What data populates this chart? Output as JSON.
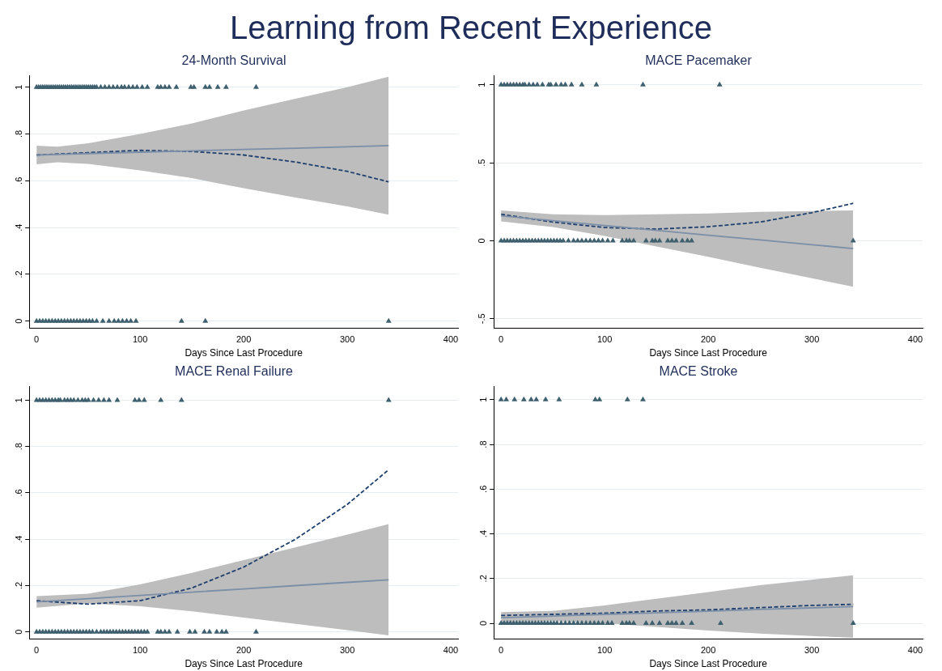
{
  "chart_data": [
    {
      "type": "other",
      "title": "Learning from Recent Experience"
    },
    {
      "type": "scatter",
      "title": "24-Month Survival",
      "xlabel": "Days Since Last Procedure",
      "xlim": [
        -7,
        407
      ],
      "xticks": [
        0,
        100,
        200,
        300,
        400
      ],
      "ylim": [
        -0.03,
        1.05
      ],
      "yticks": [
        {
          "value": 0,
          "label": "0"
        },
        {
          "value": 0.2,
          "label": ".2"
        },
        {
          "value": 0.4,
          "label": ".4"
        },
        {
          "value": 0.6,
          "label": ".6"
        },
        {
          "value": 0.8,
          "label": ".8"
        },
        {
          "value": 1,
          "label": "1"
        }
      ],
      "grid": "y",
      "legend": false,
      "series": [
        {
          "type": "line",
          "color": "#7b8fa8",
          "x": [
            0,
            20,
            50,
            100,
            150,
            200,
            250,
            300,
            340
          ],
          "values": [
            0.71,
            0.712,
            0.716,
            0.722,
            0.728,
            0.734,
            0.739,
            0.745,
            0.75
          ],
          "lower": [
            0.67,
            0.679,
            0.672,
            0.644,
            0.611,
            0.568,
            0.528,
            0.49,
            0.455
          ],
          "upper": [
            0.75,
            0.745,
            0.76,
            0.8,
            0.845,
            0.9,
            0.95,
            1.0,
            1.045
          ],
          "marker": "none"
        },
        {
          "type": "line",
          "color": "#1f3f6e",
          "line_style": "dashed",
          "x": [
            0,
            50,
            100,
            150,
            200,
            250,
            300,
            340
          ],
          "values": [
            0.71,
            0.72,
            0.73,
            0.725,
            0.71,
            0.68,
            0.64,
            0.595
          ],
          "marker": "none"
        },
        {
          "type": "scatter",
          "color": "#3d5f6e",
          "marker": "triangle",
          "x": [
            0,
            2,
            4,
            6,
            8,
            10,
            12,
            14,
            16,
            18,
            20,
            22,
            24,
            26,
            28,
            30,
            32,
            34,
            36,
            38,
            40,
            42,
            44,
            46,
            48,
            50,
            52,
            54,
            56,
            58,
            62,
            66,
            70,
            74,
            78,
            82,
            85,
            89,
            93,
            97,
            102,
            107,
            117,
            120,
            124,
            128,
            135,
            149,
            152,
            163,
            167,
            175,
            183,
            212
          ],
          "values": [
            1,
            1,
            1,
            1,
            1,
            1,
            1,
            1,
            1,
            1,
            1,
            1,
            1,
            1,
            1,
            1,
            1,
            1,
            1,
            1,
            1,
            1,
            1,
            1,
            1,
            1,
            1,
            1,
            1,
            1,
            1,
            1,
            1,
            1,
            1,
            1,
            1,
            1,
            1,
            1,
            1,
            1,
            1,
            1,
            1,
            1,
            1,
            1,
            1,
            1,
            1,
            1,
            1,
            1
          ]
        },
        {
          "type": "scatter",
          "color": "#3d5f6e",
          "marker": "triangle",
          "x": [
            0,
            3,
            6,
            9,
            12,
            15,
            18,
            21,
            24,
            27,
            30,
            33,
            36,
            39,
            42,
            45,
            48,
            51,
            54,
            58,
            64,
            70,
            75,
            79,
            83,
            87,
            91,
            96,
            140,
            163,
            340
          ],
          "values": [
            0,
            0,
            0,
            0,
            0,
            0,
            0,
            0,
            0,
            0,
            0,
            0,
            0,
            0,
            0,
            0,
            0,
            0,
            0,
            0,
            0,
            0,
            0,
            0,
            0,
            0,
            0,
            0,
            0,
            0,
            0
          ]
        }
      ]
    },
    {
      "type": "scatter",
      "title": "MACE Pacemaker",
      "xlabel": "Days Since Last Procedure",
      "xlim": [
        -7,
        407
      ],
      "xticks": [
        0,
        100,
        200,
        300,
        400
      ],
      "ylim": [
        -0.56,
        1.06
      ],
      "yticks": [
        {
          "value": -0.5,
          "label": "-.5"
        },
        {
          "value": 0,
          "label": "0"
        },
        {
          "value": 0.5,
          "label": ".5"
        },
        {
          "value": 1,
          "label": "1"
        }
      ],
      "grid": "y",
      "legend": false,
      "series": [
        {
          "type": "line",
          "color": "#7b8fa8",
          "x": [
            0,
            50,
            100,
            150,
            200,
            250,
            300,
            340
          ],
          "values": [
            0.16,
            0.129,
            0.098,
            0.067,
            0.036,
            0.006,
            -0.025,
            -0.05
          ],
          "lower": [
            0.125,
            0.088,
            0.031,
            -0.036,
            -0.103,
            -0.173,
            -0.24,
            -0.295
          ],
          "upper": [
            0.195,
            0.17,
            0.165,
            0.17,
            0.175,
            0.185,
            0.19,
            0.195
          ],
          "marker": "none"
        },
        {
          "type": "line",
          "color": "#1f3f6e",
          "line_style": "dashed",
          "x": [
            0,
            50,
            100,
            150,
            200,
            250,
            300,
            340
          ],
          "values": [
            0.17,
            0.12,
            0.085,
            0.075,
            0.09,
            0.12,
            0.18,
            0.24
          ],
          "marker": "none"
        },
        {
          "type": "scatter",
          "color": "#3d5f6e",
          "marker": "triangle",
          "x": [
            0,
            3,
            6,
            9,
            12,
            15,
            18,
            21,
            23,
            27,
            31,
            35,
            40,
            46,
            48,
            53,
            58,
            62,
            68,
            78,
            92,
            137,
            211
          ],
          "values": [
            1,
            1,
            1,
            1,
            1,
            1,
            1,
            1,
            1,
            1,
            1,
            1,
            1,
            1,
            1,
            1,
            1,
            1,
            1,
            1,
            1,
            1,
            1
          ]
        },
        {
          "type": "scatter",
          "color": "#3d5f6e",
          "marker": "triangle",
          "x": [
            0,
            3,
            6,
            9,
            12,
            15,
            18,
            21,
            24,
            27,
            30,
            33,
            36,
            39,
            42,
            45,
            48,
            51,
            54,
            57,
            60,
            65,
            70,
            74,
            78,
            82,
            86,
            90,
            94,
            98,
            103,
            108,
            117,
            121,
            124,
            128,
            140,
            146,
            149,
            153,
            161,
            165,
            169,
            175,
            180,
            184,
            340
          ],
          "values": [
            0,
            0,
            0,
            0,
            0,
            0,
            0,
            0,
            0,
            0,
            0,
            0,
            0,
            0,
            0,
            0,
            0,
            0,
            0,
            0,
            0,
            0,
            0,
            0,
            0,
            0,
            0,
            0,
            0,
            0,
            0,
            0,
            0,
            0,
            0,
            0,
            0,
            0,
            0,
            0,
            0,
            0,
            0,
            0,
            0,
            0,
            0
          ]
        }
      ]
    },
    {
      "type": "scatter",
      "title": "MACE Renal Failure",
      "xlabel": "Days Since Last Procedure",
      "xlim": [
        -7,
        407
      ],
      "xticks": [
        0,
        100,
        200,
        300,
        400
      ],
      "ylim": [
        -0.03,
        1.06
      ],
      "yticks": [
        {
          "value": 0,
          "label": "0"
        },
        {
          "value": 0.2,
          "label": ".2"
        },
        {
          "value": 0.4,
          "label": ".4"
        },
        {
          "value": 0.6,
          "label": ".6"
        },
        {
          "value": 0.8,
          "label": ".8"
        },
        {
          "value": 1,
          "label": "1"
        }
      ],
      "grid": "y",
      "legend": false,
      "series": [
        {
          "type": "line",
          "color": "#7b8fa8",
          "x": [
            0,
            50,
            100,
            150,
            200,
            250,
            300,
            340
          ],
          "values": [
            0.13,
            0.144,
            0.158,
            0.172,
            0.186,
            0.2,
            0.214,
            0.225
          ],
          "lower": [
            0.105,
            0.123,
            0.111,
            0.089,
            0.062,
            0.035,
            0.008,
            -0.015
          ],
          "upper": [
            0.155,
            0.165,
            0.205,
            0.255,
            0.31,
            0.365,
            0.42,
            0.465
          ],
          "marker": "none"
        },
        {
          "type": "line",
          "color": "#1f3f6e",
          "line_style": "dashed",
          "x": [
            0,
            50,
            100,
            150,
            200,
            250,
            300,
            340
          ],
          "values": [
            0.135,
            0.12,
            0.135,
            0.19,
            0.28,
            0.4,
            0.55,
            0.7
          ],
          "marker": "none"
        },
        {
          "type": "scatter",
          "color": "#3d5f6e",
          "marker": "triangle",
          "x": [
            0,
            3,
            6,
            9,
            12,
            15,
            18,
            21,
            23,
            27,
            30,
            33,
            36,
            40,
            44,
            47,
            50,
            55,
            60,
            65,
            70,
            78,
            95,
            99,
            104,
            120,
            140,
            340
          ],
          "values": [
            1,
            1,
            1,
            1,
            1,
            1,
            1,
            1,
            1,
            1,
            1,
            1,
            1,
            1,
            1,
            1,
            1,
            1,
            1,
            1,
            1,
            1,
            1,
            1,
            1,
            1,
            1,
            1
          ]
        },
        {
          "type": "scatter",
          "color": "#3d5f6e",
          "marker": "triangle",
          "x": [
            0,
            3,
            6,
            9,
            12,
            15,
            18,
            21,
            24,
            27,
            30,
            33,
            36,
            39,
            42,
            45,
            48,
            51,
            54,
            58,
            62,
            65,
            68,
            71,
            74,
            77,
            80,
            83,
            86,
            89,
            92,
            95,
            98,
            101,
            104,
            107,
            117,
            120,
            124,
            128,
            136,
            148,
            153,
            162,
            167,
            174,
            179,
            183,
            212
          ],
          "values": [
            0,
            0,
            0,
            0,
            0,
            0,
            0,
            0,
            0,
            0,
            0,
            0,
            0,
            0,
            0,
            0,
            0,
            0,
            0,
            0,
            0,
            0,
            0,
            0,
            0,
            0,
            0,
            0,
            0,
            0,
            0,
            0,
            0,
            0,
            0,
            0,
            0,
            0,
            0,
            0,
            0,
            0,
            0,
            0,
            0,
            0,
            0,
            0,
            0
          ]
        }
      ]
    },
    {
      "type": "scatter",
      "title": "MACE Stroke",
      "xlabel": "Days Since Last Procedure",
      "xlim": [
        -7,
        407
      ],
      "xticks": [
        0,
        100,
        200,
        300,
        400
      ],
      "ylim": [
        -0.07,
        1.06
      ],
      "yticks": [
        {
          "value": 0,
          "label": "0"
        },
        {
          "value": 0.2,
          "label": ".2"
        },
        {
          "value": 0.4,
          "label": ".4"
        },
        {
          "value": 0.6,
          "label": ".6"
        },
        {
          "value": 0.8,
          "label": ".8"
        },
        {
          "value": 1,
          "label": "1"
        }
      ],
      "grid": "y",
      "legend": false,
      "series": [
        {
          "type": "line",
          "color": "#7b8fa8",
          "x": [
            0,
            50,
            100,
            150,
            200,
            250,
            300,
            340
          ],
          "values": [
            0.025,
            0.032,
            0.04,
            0.047,
            0.054,
            0.062,
            0.069,
            0.075
          ],
          "lower": [
            0.0,
            0.009,
            0.0,
            -0.016,
            -0.032,
            -0.046,
            -0.057,
            -0.065
          ],
          "upper": [
            0.05,
            0.055,
            0.08,
            0.11,
            0.14,
            0.17,
            0.195,
            0.215
          ],
          "marker": "none"
        },
        {
          "type": "line",
          "color": "#1f3f6e",
          "line_style": "dashed",
          "x": [
            0,
            50,
            100,
            150,
            200,
            250,
            300,
            340
          ],
          "values": [
            0.035,
            0.04,
            0.045,
            0.055,
            0.06,
            0.07,
            0.08,
            0.085
          ],
          "marker": "none"
        },
        {
          "type": "scatter",
          "color": "#3d5f6e",
          "marker": "triangle",
          "x": [
            0,
            5,
            13,
            22,
            29,
            34,
            43,
            56,
            91,
            95,
            122,
            137
          ],
          "values": [
            1,
            1,
            1,
            1,
            1,
            1,
            1,
            1,
            1,
            1,
            1,
            1
          ]
        },
        {
          "type": "scatter",
          "color": "#3d5f6e",
          "marker": "triangle",
          "x": [
            0,
            3,
            6,
            9,
            12,
            15,
            18,
            21,
            24,
            27,
            30,
            33,
            36,
            39,
            42,
            45,
            48,
            51,
            54,
            58,
            62,
            66,
            70,
            74,
            78,
            82,
            86,
            90,
            94,
            98,
            103,
            107,
            117,
            121,
            124,
            128,
            140,
            146,
            153,
            161,
            165,
            169,
            175,
            184,
            212,
            340
          ],
          "values": [
            0,
            0,
            0,
            0,
            0,
            0,
            0,
            0,
            0,
            0,
            0,
            0,
            0,
            0,
            0,
            0,
            0,
            0,
            0,
            0,
            0,
            0,
            0,
            0,
            0,
            0,
            0,
            0,
            0,
            0,
            0,
            0,
            0,
            0,
            0,
            0,
            0,
            0,
            0,
            0,
            0,
            0,
            0,
            0,
            0,
            0
          ]
        }
      ]
    }
  ]
}
